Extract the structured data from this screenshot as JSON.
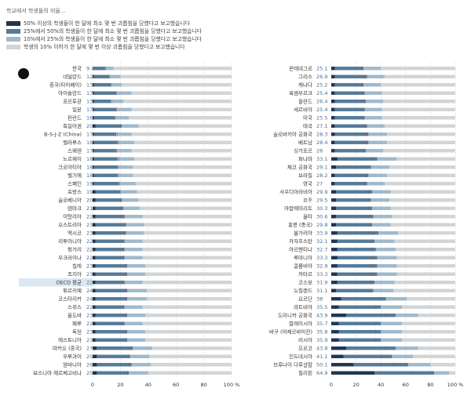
{
  "title": "학교에서 학생들의 비율...",
  "chart_data": [
    {
      "type": "bar",
      "orientation": "horizontal",
      "stacked": true,
      "highlight": 26,
      "categories": [
        "한국",
        "네덜란드",
        "중국(타이베이)",
        "아이슬란드",
        "포르투갈",
        "일본",
        "핀란드",
        "독일어권",
        "B-S-J-Z (China)",
        "벨라루스",
        "스웨덴",
        "노르웨이",
        "크로아티아",
        "벨기에",
        "스페인",
        "프랑스",
        "슬로베니아",
        "덴마크",
        "이탈리아",
        "오스트리아",
        "멕시코",
        "리투아니아",
        "헝가리",
        "우크라이나",
        "칠레",
        "조지아",
        "OECD 평균",
        "튀르키예",
        "코스타리카",
        "스위스",
        "몰도바",
        "페루",
        "독일",
        "에스토니아",
        "마카오 (중국)",
        "우루과이",
        "알바니아",
        "보스니아 헤르체고비나"
      ],
      "values": [
        9.4,
        12.2,
        13.3,
        17.2,
        13.7,
        17.3,
        16.2,
        20.6,
        17.7,
        18.5,
        17.3,
        18.8,
        18.2,
        18.3,
        19.3,
        19.8,
        20.9,
        21.4,
        22.7,
        23.2,
        23.0,
        22.6,
        22.6,
        22.3,
        23.9,
        23.6,
        22.7,
        24.1,
        24.3,
        22.4,
        23.9,
        22.5,
        23.6,
        23.7,
        27.0,
        25.6,
        26.5,
        25.3
      ],
      "xlim": [
        0,
        100
      ],
      "xticks": [
        0,
        20,
        40,
        60,
        80,
        {
          "value": 100,
          "label": "100 %"
        }
      ],
      "series": [
        {
          "name": "50% 이상의 학생들이 한 달에 최소 몇 번 괴롭힘을 당했다고 보고했습니다",
          "color": "#1f3550",
          "values": [
            0,
            1,
            1,
            1,
            1,
            1,
            1,
            2,
            1,
            1,
            1,
            1,
            1,
            1,
            1,
            2,
            2,
            2,
            2,
            2,
            2,
            2,
            2,
            2,
            2,
            2,
            2,
            2,
            2,
            2,
            2,
            2,
            2,
            2,
            3,
            3,
            3,
            3
          ]
        },
        {
          "name": "25%에서 50%의 학생들이 한 달에 최소 몇 번 괴롭힘을 당했다고 보고했습니다",
          "color": "#557b99",
          "values": [
            9,
            11,
            12,
            16,
            12,
            16,
            15,
            19,
            16,
            17,
            16,
            17,
            17,
            17,
            18,
            18,
            19,
            20,
            21,
            22,
            22,
            21,
            21,
            21,
            23,
            23,
            21,
            23,
            23,
            21,
            23,
            21,
            23,
            23,
            26,
            24,
            25,
            23
          ]
        },
        {
          "name": "10%에서 25%의 학생들이 한 달에 최소 몇 번 괴롭힘을 당했다고 보고했습니다",
          "color": "#9fb9cc",
          "values": [
            6,
            8,
            8,
            11,
            9,
            11,
            10,
            12,
            11,
            12,
            11,
            12,
            11,
            11,
            12,
            12,
            12,
            12,
            13,
            13,
            13,
            13,
            13,
            13,
            13,
            13,
            13,
            14,
            14,
            13,
            13,
            13,
            13,
            13,
            14,
            14,
            14,
            14
          ]
        },
        {
          "name": "학생의 10% 이하가 한 달에 몇 번 이상 괴롭힘을 당했다고 보고했습니다",
          "color": "#d2d4d6",
          "values": [
            85,
            80,
            79,
            72,
            78,
            72,
            74,
            67,
            72,
            70,
            72,
            70,
            71,
            71,
            69,
            68,
            67,
            66,
            64,
            63,
            63,
            64,
            64,
            64,
            62,
            62,
            64,
            61,
            61,
            64,
            62,
            64,
            62,
            62,
            57,
            59,
            58,
            60
          ]
        }
      ]
    },
    {
      "type": "bar",
      "orientation": "horizontal",
      "stacked": true,
      "categories": [
        "몬테네그로",
        "그리스",
        "캐나다",
        "룩셈부르크",
        "폴란드",
        "세르비아",
        "미국",
        "태국",
        "슬로바키아 공화국",
        "베트남",
        "싱가포르",
        "파나마",
        "체코 공화국",
        "브라질",
        "영국",
        "사우디아라비아",
        "호주",
        "아랍에미리트",
        "몰타",
        "홍콩 (중국)",
        "불가리아",
        "카자흐스탄",
        "아르헨티나",
        "루마니아",
        "콜롬비아",
        "카타르",
        "코소보",
        "뉴질랜드",
        "요르단",
        "라트비아",
        "도미니카 공화국",
        "말레이시아",
        "바쿠 (아제르바이잔)",
        "러시아",
        "모로코",
        "인도네시아",
        "브루나이 다루살람",
        "필리핀"
      ],
      "values": [
        25.1,
        26.9,
        25.2,
        25.4,
        26.4,
        25.4,
        25.5,
        27.1,
        28.3,
        28.4,
        26.0,
        33.1,
        29.1,
        28.2,
        27.0,
        29.9,
        29.5,
        30.3,
        30.6,
        29.8,
        33.9,
        32.1,
        32.7,
        33.3,
        32.9,
        33.3,
        31.9,
        31.1,
        38.0,
        35.5,
        43.9,
        35.7,
        35.8,
        35.9,
        43.8,
        41.1,
        50.1,
        64.9
      ],
      "xlim": [
        0,
        100
      ],
      "xticks": [
        0,
        20,
        40,
        60,
        80,
        {
          "value": 100,
          "label": "100 %"
        }
      ],
      "series": [
        {
          "values": [
            3,
            3,
            3,
            3,
            3,
            3,
            3,
            3,
            3,
            3,
            3,
            5,
            4,
            3,
            3,
            4,
            4,
            4,
            4,
            4,
            5,
            5,
            5,
            5,
            5,
            5,
            5,
            4,
            8,
            6,
            12,
            6,
            6,
            6,
            12,
            10,
            18,
            35
          ]
        },
        {
          "values": [
            23,
            26,
            23,
            24,
            25,
            24,
            24,
            26,
            27,
            27,
            25,
            32,
            28,
            27,
            26,
            29,
            28,
            29,
            30,
            29,
            33,
            30,
            31,
            32,
            32,
            32,
            30,
            30,
            36,
            34,
            40,
            34,
            34,
            34,
            40,
            39,
            44,
            48
          ]
        },
        {
          "values": [
            14,
            14,
            14,
            14,
            14,
            14,
            14,
            14,
            15,
            15,
            14,
            16,
            15,
            15,
            14,
            15,
            15,
            15,
            15,
            15,
            16,
            16,
            16,
            16,
            16,
            16,
            16,
            16,
            17,
            17,
            18,
            17,
            17,
            17,
            18,
            17,
            18,
            12
          ]
        },
        {
          "values": [
            60,
            57,
            60,
            59,
            58,
            59,
            59,
            57,
            55,
            55,
            58,
            47,
            53,
            55,
            57,
            52,
            53,
            52,
            51,
            52,
            46,
            49,
            48,
            47,
            47,
            47,
            49,
            50,
            39,
            43,
            30,
            43,
            43,
            43,
            30,
            34,
            20,
            5
          ]
        }
      ]
    }
  ]
}
